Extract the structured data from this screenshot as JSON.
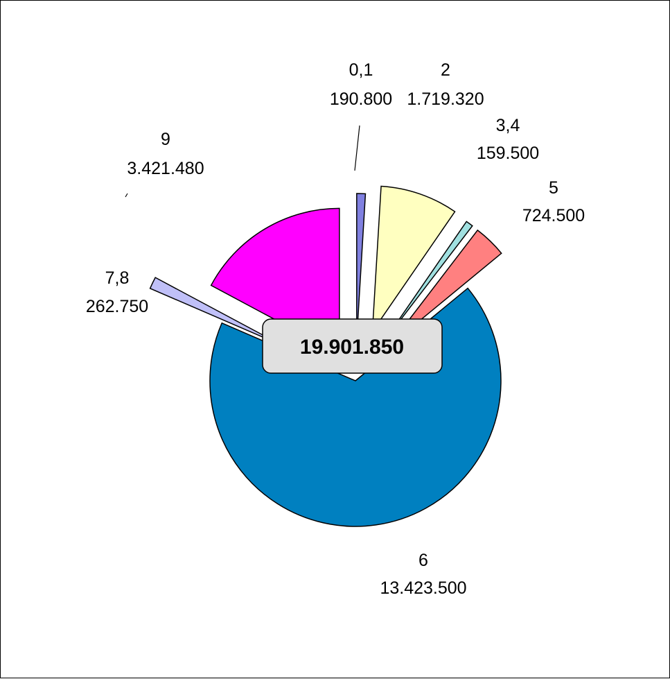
{
  "chart_data": {
    "type": "pie",
    "exploded": true,
    "total_label": "19.901.850",
    "slices": [
      {
        "label": "0,1",
        "value_text": "190.800",
        "value": 190800,
        "color": "#8080e0"
      },
      {
        "label": "2",
        "value_text": "1.719.320",
        "value": 1719320,
        "color": "#ffffc0"
      },
      {
        "label": "3,4",
        "value_text": "159.500",
        "value": 159500,
        "color": "#a0e0e0"
      },
      {
        "label": "5",
        "value_text": "724.500",
        "value": 724500,
        "color": "#ff8080"
      },
      {
        "label": "6",
        "value_text": "13.423.500",
        "value": 13423500,
        "color": "#0080c0"
      },
      {
        "label": "7,8",
        "value_text": "262.750",
        "value": 262750,
        "color": "#c0c0f8"
      },
      {
        "label": "9",
        "value_text": "3.421.480",
        "value": 3421480,
        "color": "#ff00ff"
      }
    ]
  }
}
